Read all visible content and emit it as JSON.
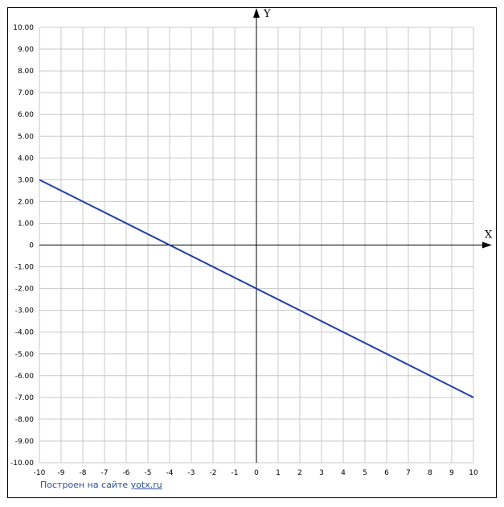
{
  "chart_data": {
    "type": "line",
    "x_axis_name": "X",
    "y_axis_name": "Y",
    "xlim": [
      -10,
      10
    ],
    "ylim": [
      -10,
      10
    ],
    "grid": true,
    "x_ticks": [
      "-10",
      "-9",
      "-8",
      "-7",
      "-6",
      "-5",
      "-4",
      "-3",
      "-2",
      "-1",
      "0",
      "1",
      "2",
      "3",
      "4",
      "5",
      "6",
      "7",
      "8",
      "9",
      "10"
    ],
    "y_ticks": [
      "10.00",
      "9.00",
      "8.00",
      "7.00",
      "6.00",
      "5.00",
      "4.00",
      "3.00",
      "2.00",
      "1.00",
      "0",
      "-1.00",
      "-2.00",
      "-3.00",
      "-4.00",
      "-5.00",
      "-6.00",
      "-7.00",
      "-8.00",
      "-9.00",
      "-10.00"
    ],
    "series": [
      {
        "x": [
          -10,
          10
        ],
        "y": [
          3,
          -7
        ],
        "color": "#1f3fa6"
      }
    ]
  },
  "credit": {
    "text": "Построен на сайте",
    "link": "yotx.ru"
  },
  "colors": {
    "grid": "#c8c8c8",
    "axis": "#000000",
    "line": "#1f3fa6",
    "credit": "#2a4f9a"
  }
}
